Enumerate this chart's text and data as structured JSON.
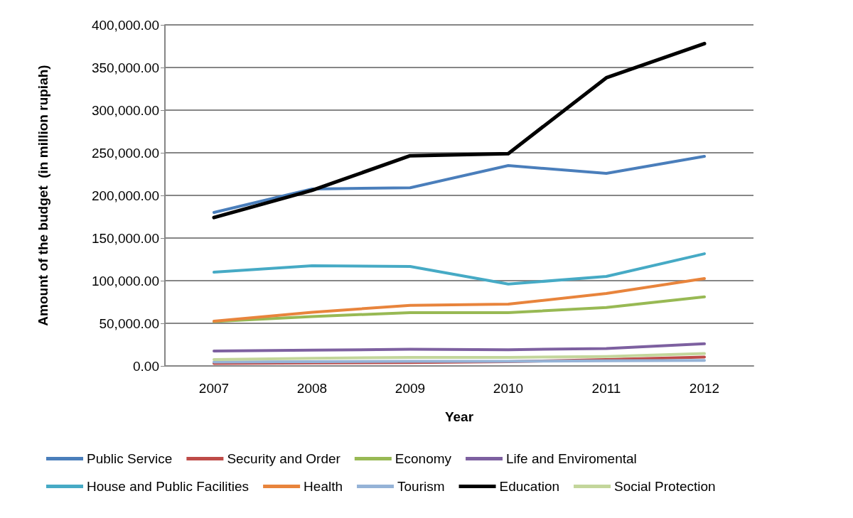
{
  "chart_data": {
    "type": "line",
    "xlabel": "Year",
    "ylabel": "Amount of the budget  (in million rupiah)",
    "categories": [
      "2007",
      "2008",
      "2009",
      "2010",
      "2011",
      "2012"
    ],
    "series": [
      {
        "name": "Public Service",
        "color": "#4a7ebb",
        "values": [
          180000,
          207500,
          209000,
          235000,
          225800,
          245800
        ]
      },
      {
        "name": "Security and Order",
        "color": "#be4b48",
        "values": [
          3000,
          3500,
          4000,
          5000,
          7500,
          10500
        ]
      },
      {
        "name": "Economy",
        "color": "#98b954",
        "values": [
          52000,
          58000,
          62500,
          62500,
          68500,
          81000
        ]
      },
      {
        "name": "Life and Enviromental",
        "color": "#7d60a0",
        "values": [
          17500,
          18500,
          19500,
          19000,
          20500,
          26000
        ]
      },
      {
        "name": "House and Public Facilities",
        "color": "#46aac5",
        "values": [
          110000,
          117500,
          116700,
          96000,
          105000,
          131600
        ]
      },
      {
        "name": "Health",
        "color": "#e8843c",
        "values": [
          52500,
          63000,
          71000,
          72500,
          85000,
          102500
        ]
      },
      {
        "name": "Tourism",
        "color": "#95b3d7",
        "values": [
          4500,
          5000,
          5500,
          5500,
          6000,
          6500
        ]
      },
      {
        "name": "Education",
        "color": "#000000",
        "values": [
          174000,
          206000,
          246500,
          249000,
          338000,
          378000
        ]
      },
      {
        "name": "Social Protection",
        "color": "#c3d69b",
        "values": [
          7500,
          9000,
          10000,
          10000,
          11000,
          14500
        ]
      }
    ],
    "ylim": [
      0,
      400000
    ],
    "yticks": [
      {
        "value": 0,
        "label": "0.00"
      },
      {
        "value": 50000,
        "label": "50,000.00"
      },
      {
        "value": 100000,
        "label": "100,000.00"
      },
      {
        "value": 150000,
        "label": "150,000.00"
      },
      {
        "value": 200000,
        "label": "200,000.00"
      },
      {
        "value": 250000,
        "label": "250,000.00"
      },
      {
        "value": 300000,
        "label": "300,000.00"
      },
      {
        "value": 350000,
        "label": "350,000.00"
      },
      {
        "value": 400000,
        "label": "400,000.00"
      }
    ],
    "grid": "y",
    "legend": "bottom",
    "marker": "none",
    "line_style": "solid"
  }
}
